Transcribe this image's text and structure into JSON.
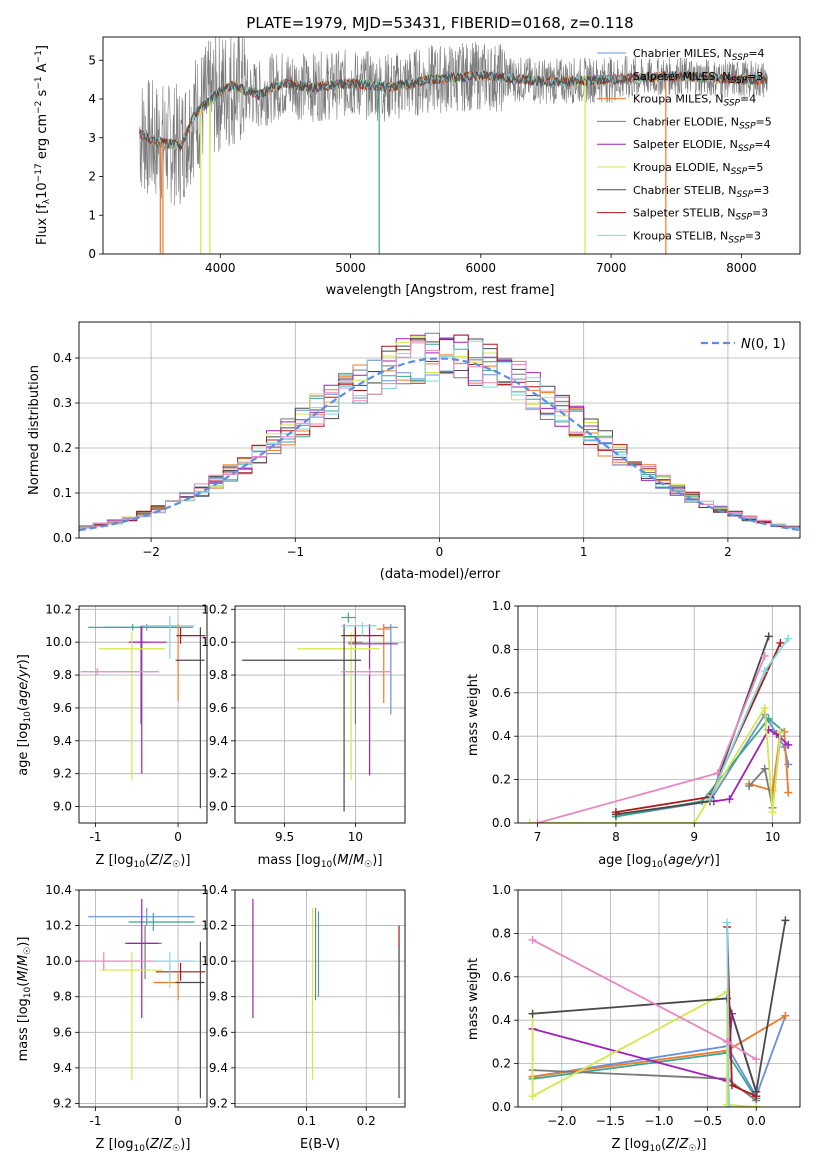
{
  "title": "PLATE=1979, MJD=53431, FIBERID=0168, z=0.118",
  "colors": {
    "chabrier_miles": "#6a8fd9",
    "salpeter_miles": "#38a88f",
    "kroupa_miles": "#f07a2a",
    "chabrier_elodie": "#7a7a7a",
    "salpeter_elodie": "#a020b8",
    "kroupa_elodie": "#d4e84a",
    "chabrier_stelib": "#4a4a4a",
    "salpeter_stelib": "#b01818",
    "kroupa_stelib": "#80d8e0",
    "pink": "#e887c0",
    "gauss": "#5b8ee6"
  },
  "chart_data": [
    {
      "type": "line",
      "panel": "spectrum",
      "xlabel": "wavelength [Angstrom, rest frame]",
      "ylabel": "Flux [fλ 10^-17 erg cm^-2 s^-1 A^-1]",
      "xlim": [
        3100,
        8450
      ],
      "ylim": [
        0,
        5.6
      ],
      "xticks": [
        4000,
        5000,
        6000,
        7000,
        8000
      ],
      "yticks": [
        0,
        1,
        2,
        3,
        4,
        5
      ],
      "grid": false,
      "legend_position": "top-right",
      "legend": [
        {
          "key": "chabrier_miles",
          "label": "Chabrier MILES, N",
          "sub": "SSP",
          "tail": "=4"
        },
        {
          "key": "salpeter_miles",
          "label": "Salpeter MILES, N",
          "sub": "SSP",
          "tail": "=3"
        },
        {
          "key": "kroupa_miles",
          "label": "Kroupa MILES, N",
          "sub": "SSP",
          "tail": "=4"
        },
        {
          "key": "chabrier_elodie",
          "label": "Chabrier ELODIE, N",
          "sub": "SSP",
          "tail": "=5"
        },
        {
          "key": "salpeter_elodie",
          "label": "Salpeter ELODIE, N",
          "sub": "SSP",
          "tail": "=4"
        },
        {
          "key": "kroupa_elodie",
          "label": "Kroupa ELODIE, N",
          "sub": "SSP",
          "tail": "=5"
        },
        {
          "key": "chabrier_stelib",
          "label": "Chabrier STELIB, N",
          "sub": "SSP",
          "tail": "=3"
        },
        {
          "key": "salpeter_stelib",
          "label": "Salpeter STELIB, N",
          "sub": "SSP",
          "tail": "=3"
        },
        {
          "key": "kroupa_stelib",
          "label": "Kroupa STELIB, N",
          "sub": "SSP",
          "tail": "=3"
        }
      ],
      "continuum": {
        "x": [
          3380,
          3500,
          3600,
          3700,
          3800,
          3900,
          4000,
          4100,
          4200,
          4300,
          4400,
          4500,
          4700,
          5000,
          5300,
          5600,
          6000,
          6500,
          7000,
          7500,
          8000,
          8200
        ],
        "y": [
          3.1,
          2.9,
          2.85,
          2.8,
          3.6,
          3.9,
          4.2,
          4.35,
          4.2,
          4.1,
          4.3,
          4.4,
          4.3,
          4.4,
          4.3,
          4.5,
          4.6,
          4.45,
          4.5,
          4.6,
          4.5,
          4.5
        ]
      },
      "spikes_to_zero": [
        3540,
        3560,
        3850,
        3920,
        5220,
        6800,
        7420
      ]
    },
    {
      "type": "bar",
      "panel": "residual-histogram",
      "xlabel": "(data-model)/error",
      "ylabel": "Normed distribution",
      "xlim": [
        -2.5,
        2.5
      ],
      "ylim": [
        0,
        0.48
      ],
      "xticks": [
        -2,
        -1,
        0,
        1,
        2
      ],
      "xtick_labels": [
        "−2",
        "−1",
        "0",
        "1",
        "2"
      ],
      "yticks": [
        0.0,
        0.1,
        0.2,
        0.3,
        0.4
      ],
      "grid": true,
      "legend_position": "top-right",
      "gauss_label": "N(0, 1)",
      "bin_width": 0.1
    },
    {
      "type": "scatter",
      "panel": "age-vs-Z",
      "xlabel": "Z [log10(Z/Z☉)]",
      "ylabel": "age [log10(age/yr)]",
      "xlim": [
        -1.2,
        0.35
      ],
      "ylim": [
        8.9,
        10.22
      ],
      "xticks": [
        -1,
        0
      ],
      "yticks": [
        9.0,
        9.2,
        9.4,
        9.6,
        9.8,
        10.0,
        10.2
      ],
      "grid": true,
      "points": [
        {
          "c": "chabrier_miles",
          "x": -0.38,
          "xerr": [
            0.71,
            0.56
          ],
          "y": 10.09,
          "yerr": [
            0.02,
            0.02
          ]
        },
        {
          "c": "salpeter_miles",
          "x": -0.55,
          "xerr": [
            0.35,
            0.55
          ],
          "y": 10.09,
          "yerr": [
            0.02,
            0.02
          ]
        },
        {
          "c": "kroupa_miles",
          "x": 0.0,
          "xerr": [
            0.02,
            0.02
          ],
          "y": 10.09,
          "yerr": [
            0.45,
            0.02
          ]
        },
        {
          "c": "chabrier_elodie",
          "x": -0.45,
          "xerr": [
            0.15,
            0.1
          ],
          "y": 10.0,
          "yerr": [
            0.5,
            0.1
          ]
        },
        {
          "c": "salpeter_elodie",
          "x": -0.44,
          "xerr": [
            0.15,
            0.3
          ],
          "y": 10.0,
          "yerr": [
            0.8,
            0.1
          ]
        },
        {
          "c": "kroupa_elodie",
          "x": -0.56,
          "xerr": [
            0.4,
            0.4
          ],
          "y": 9.96,
          "yerr": [
            0.8,
            0.1
          ]
        },
        {
          "c": "chabrier_stelib",
          "x": 0.27,
          "xerr": [
            0.3,
            0.05
          ],
          "y": 9.89,
          "yerr": [
            0.9,
            0.2
          ]
        },
        {
          "c": "salpeter_stelib",
          "x": 0.03,
          "xerr": [
            0.05,
            0.3
          ],
          "y": 10.04,
          "yerr": [
            0.05,
            0.05
          ]
        },
        {
          "c": "kroupa_stelib",
          "x": -0.1,
          "xerr": [
            0.35,
            0.3
          ],
          "y": 10.1,
          "yerr": [
            0.2,
            0.06
          ]
        },
        {
          "c": "pink",
          "x": -0.98,
          "xerr": [
            0.2,
            0.75
          ],
          "y": 9.82,
          "yerr": [
            0.02,
            0.02
          ]
        }
      ]
    },
    {
      "type": "scatter",
      "panel": "age-vs-mass",
      "xlabel": "mass [log10(M/M☉)]",
      "ylabel": "",
      "xlim": [
        9.15,
        10.35
      ],
      "ylim": [
        8.9,
        10.22
      ],
      "xticks": [
        9.5,
        10.0
      ],
      "yticks": [
        9.0,
        9.2,
        9.4,
        9.6,
        9.8,
        10.0,
        10.2
      ],
      "grid": true,
      "points": [
        {
          "c": "chabrier_miles",
          "x": 10.25,
          "xerr": [
            0.05,
            0.05
          ],
          "y": 10.09,
          "yerr": [
            0.53,
            0.02
          ]
        },
        {
          "c": "salpeter_miles",
          "x": 9.95,
          "xerr": [
            0.05,
            0.05
          ],
          "y": 10.15,
          "yerr": [
            0.03,
            0.03
          ]
        },
        {
          "c": "kroupa_miles",
          "x": 10.2,
          "xerr": [
            0.05,
            0.05
          ],
          "y": 10.08,
          "yerr": [
            0.45,
            0.03
          ]
        },
        {
          "c": "chabrier_elodie",
          "x": 10.0,
          "xerr": [
            0.05,
            0.05
          ],
          "y": 10.0,
          "yerr": [
            0.5,
            0.1
          ]
        },
        {
          "c": "salpeter_elodie",
          "x": 10.1,
          "xerr": [
            0.15,
            0.2
          ],
          "y": 9.99,
          "yerr": [
            0.8,
            0.12
          ]
        },
        {
          "c": "kroupa_elodie",
          "x": 9.97,
          "xerr": [
            0.38,
            0.2
          ],
          "y": 9.96,
          "yerr": [
            0.8,
            0.1
          ]
        },
        {
          "c": "chabrier_stelib",
          "x": 9.92,
          "xerr": [
            0.72,
            0.12
          ],
          "y": 9.89,
          "yerr": [
            0.92,
            0.22
          ]
        },
        {
          "c": "salpeter_stelib",
          "x": 10.0,
          "xerr": [
            0.1,
            0.2
          ],
          "y": 10.04,
          "yerr": [
            0.05,
            0.05
          ]
        },
        {
          "c": "kroupa_stelib",
          "x": 10.05,
          "xerr": [
            0.15,
            0.1
          ],
          "y": 10.1,
          "yerr": [
            0.06,
            0.02
          ]
        },
        {
          "c": "pink",
          "x": 10.1,
          "xerr": [
            0.2,
            0.15
          ],
          "y": 9.82,
          "yerr": [
            0.02,
            0.02
          ]
        }
      ]
    },
    {
      "type": "line",
      "panel": "weight-vs-age",
      "xlabel": "age [log10(age/yr)]",
      "ylabel": "mass weight",
      "xlim": [
        6.75,
        10.35
      ],
      "ylim": [
        0,
        1.0
      ],
      "xticks": [
        7,
        8,
        9,
        10
      ],
      "yticks": [
        0.0,
        0.2,
        0.4,
        0.6,
        0.8,
        1.0
      ],
      "grid": true,
      "series": [
        {
          "c": "chabrier_miles",
          "x": [
            8.0,
            9.2,
            9.9,
            10.15,
            10.2
          ],
          "y": [
            0.03,
            0.1,
            0.5,
            0.35,
            0.27
          ]
        },
        {
          "c": "salpeter_miles",
          "x": [
            8.0,
            9.1,
            9.95,
            10.15
          ],
          "y": [
            0.03,
            0.1,
            0.48,
            0.42
          ]
        },
        {
          "c": "kroupa_miles",
          "x": [
            9.7,
            10.0,
            10.1,
            10.15,
            10.2
          ],
          "y": [
            0.18,
            0.15,
            0.42,
            0.42,
            0.14
          ]
        },
        {
          "c": "chabrier_elodie",
          "x": [
            9.7,
            9.9,
            10.0,
            10.1
          ],
          "y": [
            0.17,
            0.25,
            0.07,
            0.4
          ]
        },
        {
          "c": "salpeter_elodie",
          "x": [
            9.25,
            9.45,
            9.95,
            10.05,
            10.2
          ],
          "y": [
            0.1,
            0.11,
            0.43,
            0.41,
            0.36
          ]
        },
        {
          "c": "kroupa_elodie",
          "x": [
            6.9,
            9.0,
            9.9,
            10.0,
            10.1
          ],
          "y": [
            0.0,
            0.0,
            0.53,
            0.05,
            0.42
          ]
        },
        {
          "c": "chabrier_stelib",
          "x": [
            8.0,
            9.2,
            9.95
          ],
          "y": [
            0.04,
            0.1,
            0.86
          ]
        },
        {
          "c": "salpeter_stelib",
          "x": [
            8.0,
            9.2,
            10.1
          ],
          "y": [
            0.05,
            0.12,
            0.83
          ]
        },
        {
          "c": "kroupa_stelib",
          "x": [
            9.2,
            9.9,
            10.2
          ],
          "y": [
            0.11,
            0.7,
            0.85
          ]
        },
        {
          "c": "pink",
          "x": [
            7.0,
            9.3,
            9.9
          ],
          "y": [
            0.0,
            0.23,
            0.77
          ]
        }
      ]
    },
    {
      "type": "scatter",
      "panel": "mass-vs-Z",
      "xlabel": "Z [log10(Z/Z☉)]",
      "ylabel": "mass [log10(M/M☉)]",
      "xlim": [
        -1.2,
        0.35
      ],
      "ylim": [
        9.18,
        10.4
      ],
      "xticks": [
        -1,
        0
      ],
      "yticks": [
        9.2,
        9.4,
        9.6,
        9.8,
        10.0,
        10.2,
        10.4
      ],
      "grid": true,
      "points": [
        {
          "c": "chabrier_miles",
          "x": -0.38,
          "xerr": [
            0.71,
            0.58
          ],
          "y": 10.25,
          "yerr": [
            0.05,
            0.05
          ]
        },
        {
          "c": "salpeter_miles",
          "x": -0.3,
          "xerr": [
            0.3,
            0.5
          ],
          "y": 10.22,
          "yerr": [
            0.05,
            0.05
          ]
        },
        {
          "c": "kroupa_miles",
          "x": 0.0,
          "xerr": [
            0.3,
            0.02
          ],
          "y": 9.88,
          "yerr": [
            0.1,
            0.05
          ]
        },
        {
          "c": "chabrier_elodie",
          "x": -0.4,
          "xerr": [
            0.2,
            0.2
          ],
          "y": 10.1,
          "yerr": [
            0.2,
            0.1
          ]
        },
        {
          "c": "salpeter_elodie",
          "x": -0.44,
          "xerr": [
            0.2,
            0.2
          ],
          "y": 10.1,
          "yerr": [
            0.42,
            0.25
          ]
        },
        {
          "c": "kroupa_elodie",
          "x": -0.56,
          "xerr": [
            0.38,
            0.38
          ],
          "y": 9.95,
          "yerr": [
            0.62,
            0.1
          ]
        },
        {
          "c": "chabrier_stelib",
          "x": 0.27,
          "xerr": [
            0.3,
            0.05
          ],
          "y": 9.88,
          "yerr": [
            0.65,
            0.23
          ]
        },
        {
          "c": "salpeter_stelib",
          "x": 0.03,
          "xerr": [
            0.3,
            0.3
          ],
          "y": 9.94,
          "yerr": [
            0.05,
            0.05
          ]
        },
        {
          "c": "kroupa_stelib",
          "x": -0.1,
          "xerr": [
            0.2,
            0.3
          ],
          "y": 10.0,
          "yerr": [
            0.15,
            0.05
          ]
        },
        {
          "c": "pink",
          "x": -0.9,
          "xerr": [
            0.3,
            0.6
          ],
          "y": 10.0,
          "yerr": [
            0.05,
            0.05
          ]
        }
      ]
    },
    {
      "type": "scatter",
      "panel": "mass-vs-ebv",
      "xlabel": "E(B-V)",
      "ylabel": "",
      "xlim": [
        -0.02,
        0.265
      ],
      "ylim": [
        9.18,
        10.4
      ],
      "xticks": [
        0.1,
        0.2
      ],
      "yticks": [
        9.2,
        9.4,
        9.6,
        9.8,
        10.0,
        10.2,
        10.4
      ],
      "grid": true,
      "points": [
        {
          "c": "salpeter_elodie",
          "x": 0.01,
          "xerr": [
            0,
            0
          ],
          "y": 10.0,
          "yerr": [
            0.32,
            0.35
          ]
        },
        {
          "c": "kroupa_elodie",
          "x": 0.11,
          "xerr": [
            0,
            0
          ],
          "y": 9.95,
          "yerr": [
            0.62,
            0.35
          ]
        },
        {
          "c": "chabrier_elodie",
          "x": 0.115,
          "xerr": [
            0,
            0
          ],
          "y": 10.0,
          "yerr": [
            0.22,
            0.3
          ]
        },
        {
          "c": "salpeter_miles",
          "x": 0.12,
          "xerr": [
            0,
            0
          ],
          "y": 10.0,
          "yerr": [
            0.2,
            0.28
          ]
        },
        {
          "c": "kroupa_stelib",
          "x": 0.255,
          "xerr": [
            0,
            0
          ],
          "y": 10.0,
          "yerr": [
            0.3,
            0.1
          ]
        },
        {
          "c": "chabrier_stelib",
          "x": 0.255,
          "xerr": [
            0,
            0
          ],
          "y": 9.88,
          "yerr": [
            0.65,
            0.2
          ]
        },
        {
          "c": "salpeter_stelib",
          "x": 0.255,
          "xerr": [
            0,
            0
          ],
          "y": 10.1,
          "yerr": [
            0.02,
            0.1
          ]
        }
      ]
    },
    {
      "type": "line",
      "panel": "weight-vs-Z",
      "xlabel": "Z [log10(Z/Z☉)]",
      "ylabel": "mass weight",
      "xlim": [
        -2.45,
        0.45
      ],
      "ylim": [
        0,
        1.0
      ],
      "xticks": [
        -2.0,
        -1.5,
        -1.0,
        -0.5,
        0.0
      ],
      "xtick_labels": [
        "−2.0",
        "−1.5",
        "−1.0",
        "−0.5",
        "0.0"
      ],
      "yticks": [
        0.0,
        0.2,
        0.4,
        0.6,
        0.8,
        1.0
      ],
      "grid": true,
      "series": [
        {
          "c": "chabrier_miles",
          "x": [
            -2.3,
            -0.3,
            0.0,
            0.3
          ],
          "y": [
            0.14,
            0.28,
            0.05,
            0.42
          ]
        },
        {
          "c": "salpeter_miles",
          "x": [
            -2.3,
            -0.3,
            0.0
          ],
          "y": [
            0.13,
            0.25,
            0.04
          ]
        },
        {
          "c": "kroupa_miles",
          "x": [
            -2.3,
            -0.3,
            0.3
          ],
          "y": [
            0.14,
            0.26,
            0.42
          ]
        },
        {
          "c": "chabrier_elodie",
          "x": [
            -2.3,
            -0.3,
            0.0
          ],
          "y": [
            0.17,
            0.13,
            0.03
          ]
        },
        {
          "c": "salpeter_elodie",
          "x": [
            -2.3,
            -0.3,
            -0.25,
            0.0
          ],
          "y": [
            0.36,
            0.12,
            0.43,
            0.07
          ]
        },
        {
          "c": "kroupa_elodie",
          "x": [
            -2.3,
            -2.3,
            -0.3,
            -0.3,
            0.0
          ],
          "y": [
            0.43,
            0.05,
            0.53,
            0.01,
            0.0
          ]
        },
        {
          "c": "chabrier_stelib",
          "x": [
            -2.3,
            -0.3,
            0.0,
            0.3
          ],
          "y": [
            0.43,
            0.5,
            0.07,
            0.86
          ]
        },
        {
          "c": "salpeter_stelib",
          "x": [
            -0.3,
            -0.25,
            0.0
          ],
          "y": [
            0.83,
            0.1,
            0.05
          ]
        },
        {
          "c": "kroupa_stelib",
          "x": [
            -0.3,
            -0.28
          ],
          "y": [
            0.85,
            0.0
          ]
        },
        {
          "c": "pink",
          "x": [
            -2.3,
            -0.3,
            0.0
          ],
          "y": [
            0.77,
            0.3,
            0.22
          ]
        }
      ]
    }
  ]
}
